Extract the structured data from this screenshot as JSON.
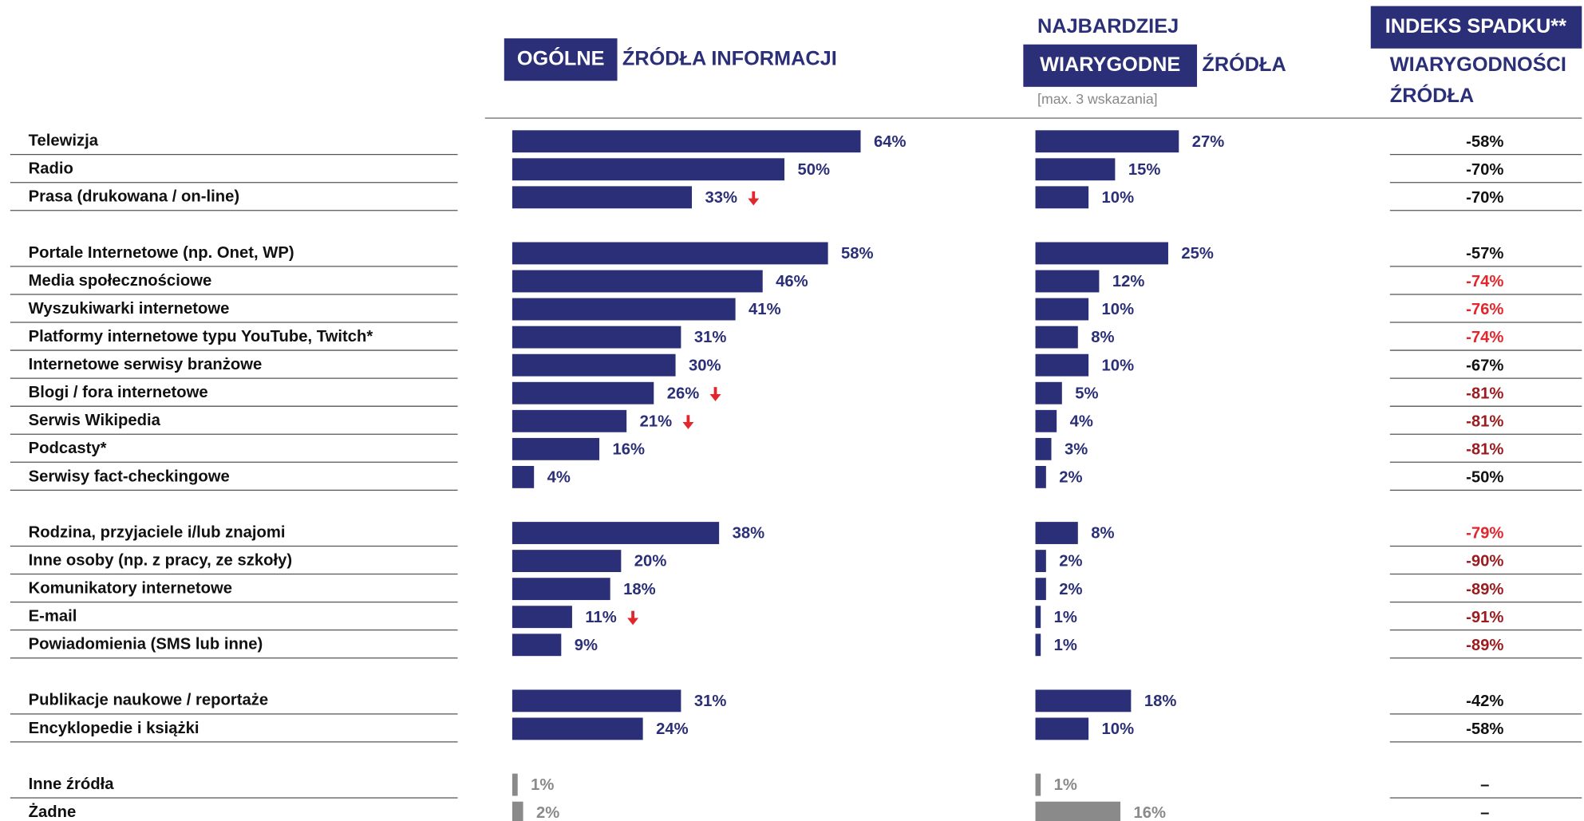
{
  "chart_data": {
    "type": "bar",
    "headers": {
      "general_box": "OGÓLNE",
      "general_rest": "ŹRÓDŁA INFORMACJI",
      "trusted_top": "NAJBARDZIEJ",
      "trusted_box": "WIARYGODNE",
      "trusted_rest": "ŹRÓDŁA",
      "trusted_note": "[max. 3 wskazania]",
      "index_box": "INDEKS SPADKU**",
      "index_line1": "WIARYGODNOŚCI",
      "index_line2": "ŹRÓDŁA"
    },
    "categories": [
      "Telewizja",
      "Radio",
      "Prasa (drukowana / on-line)",
      null,
      "Portale Internetowe (np. Onet, WP)",
      "Media społecznościowe",
      "Wyszukiwarki internetowe",
      "Platformy internetowe typu YouTube, Twitch*",
      "Internetowe serwisy branżowe",
      "Blogi / fora internetowe",
      "Serwis Wikipedia",
      "Podcasty*",
      "Serwisy fact-checkingowe",
      null,
      "Rodzina, przyjaciele i/lub znajomi",
      "Inne osoby (np. z pracy, ze szkoły)",
      "Komunikatory internetowe",
      "E-mail",
      "Powiadomienia (SMS lub inne)",
      null,
      "Publikacje naukowe / reportaże",
      "Encyklopedie i książki",
      null,
      "Inne źródła",
      "Żadne"
    ],
    "series": [
      {
        "values": [
          64,
          50,
          33,
          null,
          58,
          46,
          41,
          31,
          30,
          26,
          21,
          16,
          4,
          null,
          38,
          20,
          18,
          11,
          9,
          null,
          31,
          24,
          null,
          1,
          2
        ],
        "value_labels": [
          "64%",
          "50%",
          "33%",
          null,
          "58%",
          "46%",
          "41%",
          "31%",
          "30%",
          "26%",
          "21%",
          "16%",
          "4%",
          null,
          "38%",
          "20%",
          "18%",
          "11%",
          "9%",
          null,
          "31%",
          "24%",
          null,
          "1%",
          "2%"
        ],
        "colors": [
          "#2b2f77",
          "#2b2f77",
          "#2b2f77",
          null,
          "#2b2f77",
          "#2b2f77",
          "#2b2f77",
          "#2b2f77",
          "#2b2f77",
          "#2b2f77",
          "#2b2f77",
          "#2b2f77",
          "#2b2f77",
          null,
          "#2b2f77",
          "#2b2f77",
          "#2b2f77",
          "#2b2f77",
          "#2b2f77",
          null,
          "#2b2f77",
          "#2b2f77",
          null,
          "#8a8a8a",
          "#8a8a8a"
        ],
        "down_arrows": [
          2,
          9,
          10,
          17
        ]
      },
      {
        "values": [
          27,
          15,
          10,
          null,
          25,
          12,
          10,
          8,
          10,
          5,
          4,
          3,
          2,
          null,
          8,
          2,
          2,
          1,
          1,
          null,
          18,
          10,
          null,
          1,
          16
        ],
        "value_labels": [
          "27%",
          "15%",
          "10%",
          null,
          "25%",
          "12%",
          "10%",
          "8%",
          "10%",
          "5%",
          "4%",
          "3%",
          "2%",
          null,
          "8%",
          "2%",
          "2%",
          "1%",
          "1%",
          null,
          "18%",
          "10%",
          null,
          "1%",
          "16%"
        ],
        "colors": [
          "#2b2f77",
          "#2b2f77",
          "#2b2f77",
          null,
          "#2b2f77",
          "#2b2f77",
          "#2b2f77",
          "#2b2f77",
          "#2b2f77",
          "#2b2f77",
          "#2b2f77",
          "#2b2f77",
          "#2b2f77",
          null,
          "#2b2f77",
          "#2b2f77",
          "#2b2f77",
          "#2b2f77",
          "#2b2f77",
          null,
          "#2b2f77",
          "#2b2f77",
          null,
          "#8a8a8a",
          "#8a8a8a"
        ]
      }
    ],
    "index": {
      "labels": [
        "-58%",
        "-70%",
        "-70%",
        null,
        "-57%",
        "-74%",
        "-76%",
        "-74%",
        "-67%",
        "-81%",
        "-81%",
        "-81%",
        "-50%",
        null,
        "-79%",
        "-90%",
        "-89%",
        "-91%",
        "-89%",
        null,
        "-42%",
        "-58%",
        null,
        "–",
        "–"
      ],
      "colors": [
        "#111111",
        "#111111",
        "#111111",
        null,
        "#111111",
        "#e3262c",
        "#e3262c",
        "#e3262c",
        "#111111",
        "#9b1b1e",
        "#9b1b1e",
        "#9b1b1e",
        "#111111",
        null,
        "#e3262c",
        "#9b1b1e",
        "#9b1b1e",
        "#9b1b1e",
        "#9b1b1e",
        null,
        "#111111",
        "#111111",
        null,
        "#111111",
        "#111111"
      ]
    }
  }
}
